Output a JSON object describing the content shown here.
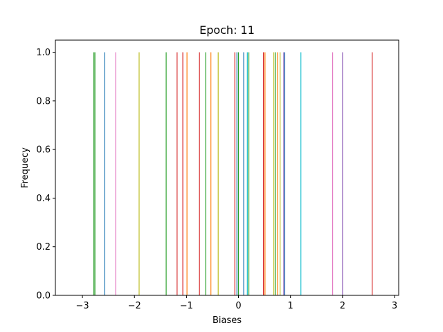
{
  "chart_data": {
    "type": "bar",
    "title": "Epoch: 11",
    "xlabel": "Biases",
    "ylabel": "Frequecy",
    "xlim": [
      -3.52,
      3.08
    ],
    "ylim": [
      0.0,
      1.05
    ],
    "xticks": [
      -3,
      -2,
      -1,
      0,
      1,
      2,
      3
    ],
    "xtick_labels": [
      "−3",
      "−2",
      "−1",
      "0",
      "1",
      "2",
      "3"
    ],
    "yticks": [
      0.0,
      0.2,
      0.4,
      0.6,
      0.8,
      1.0
    ],
    "ytick_labels": [
      "0.0",
      "0.2",
      "0.4",
      "0.6",
      "0.8",
      "1.0"
    ],
    "grid": false,
    "legend": "none",
    "bars": [
      {
        "x": -2.78,
        "value": 1.0,
        "color": "#2ca02c"
      },
      {
        "x": -2.76,
        "value": 1.0,
        "color": "#2ca02c"
      },
      {
        "x": -2.57,
        "value": 1.0,
        "color": "#1f77b4"
      },
      {
        "x": -2.36,
        "value": 1.0,
        "color": "#e377c2"
      },
      {
        "x": -1.91,
        "value": 1.0,
        "color": "#bcbd22"
      },
      {
        "x": -1.39,
        "value": 1.0,
        "color": "#2ca02c"
      },
      {
        "x": -1.18,
        "value": 1.0,
        "color": "#d62728"
      },
      {
        "x": -1.07,
        "value": 1.0,
        "color": "#d62728"
      },
      {
        "x": -0.99,
        "value": 1.0,
        "color": "#ff7f0e"
      },
      {
        "x": -0.75,
        "value": 1.0,
        "color": "#d62728"
      },
      {
        "x": -0.63,
        "value": 1.0,
        "color": "#2ca02c"
      },
      {
        "x": -0.53,
        "value": 1.0,
        "color": "#ff7f0e"
      },
      {
        "x": -0.39,
        "value": 1.0,
        "color": "#bcbd22"
      },
      {
        "x": -0.07,
        "value": 1.0,
        "color": "#d62728"
      },
      {
        "x": -0.03,
        "value": 1.0,
        "color": "#1f77b4"
      },
      {
        "x": 0.0,
        "value": 1.0,
        "color": "#2ca02c"
      },
      {
        "x": 0.1,
        "value": 1.0,
        "color": "#1f77b4"
      },
      {
        "x": 0.17,
        "value": 1.0,
        "color": "#17becf"
      },
      {
        "x": 0.2,
        "value": 1.0,
        "color": "#2ca02c"
      },
      {
        "x": 0.48,
        "value": 1.0,
        "color": "#d62728"
      },
      {
        "x": 0.51,
        "value": 1.0,
        "color": "#ff7f0e"
      },
      {
        "x": 0.68,
        "value": 1.0,
        "color": "#bcbd22"
      },
      {
        "x": 0.71,
        "value": 1.0,
        "color": "#2ca02c"
      },
      {
        "x": 0.75,
        "value": 1.0,
        "color": "#ff7f0e"
      },
      {
        "x": 0.8,
        "value": 1.0,
        "color": "#bcbd22"
      },
      {
        "x": 0.87,
        "value": 1.0,
        "color": "#9467bd"
      },
      {
        "x": 0.89,
        "value": 1.0,
        "color": "#1f77b4"
      },
      {
        "x": 1.2,
        "value": 1.0,
        "color": "#17becf"
      },
      {
        "x": 1.81,
        "value": 1.0,
        "color": "#e377c2"
      },
      {
        "x": 2.0,
        "value": 1.0,
        "color": "#9467bd"
      },
      {
        "x": 2.57,
        "value": 1.0,
        "color": "#d62728"
      }
    ]
  }
}
